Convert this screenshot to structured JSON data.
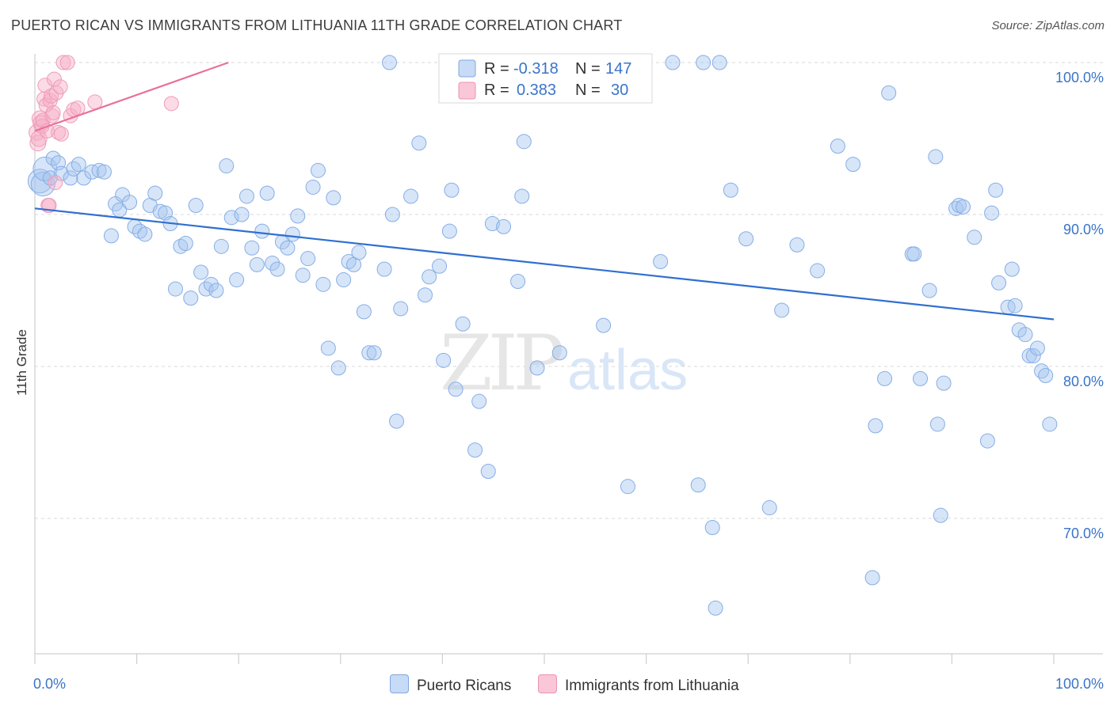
{
  "chart_data": {
    "type": "scatter",
    "title": "PUERTO RICAN VS IMMIGRANTS FROM LITHUANIA 11TH GRADE CORRELATION CHART",
    "source": "Source: ZipAtlas.com",
    "ylabel": "11th Grade",
    "xlim": [
      0,
      100
    ],
    "ylim": [
      60.5,
      102
    ],
    "x_tick_labels": [
      "0.0%",
      "100.0%"
    ],
    "y_ticks": [
      100,
      90,
      80,
      70
    ],
    "y_tick_labels": [
      "100.0%",
      "90.0%",
      "80.0%",
      "70.0%"
    ],
    "watermark": {
      "zip": "ZIP",
      "atlas": "atlas"
    },
    "legend": {
      "rows": [
        {
          "r_label": "R = ",
          "r_value": "-0.318",
          "n_label": "N = ",
          "n_value": "147"
        },
        {
          "r_label": "R = ",
          "r_value": "0.383",
          "n_label": "N = ",
          "n_value": "30"
        }
      ]
    },
    "series": [
      {
        "name": "Puerto Ricans",
        "color": "#92b8ea",
        "line_color": "#2f6fd1",
        "trend": {
          "x": [
            0,
            100
          ],
          "y": [
            90.4,
            83.1
          ]
        },
        "points": [
          [
            0.5,
            92.2
          ],
          [
            0.8,
            92.0
          ],
          [
            1.0,
            93.0
          ],
          [
            1.5,
            92.4
          ],
          [
            1.8,
            93.7
          ],
          [
            2.3,
            93.4
          ],
          [
            2.6,
            92.7
          ],
          [
            3.5,
            92.4
          ],
          [
            3.8,
            93.0
          ],
          [
            4.3,
            93.3
          ],
          [
            4.8,
            92.4
          ],
          [
            5.6,
            92.8
          ],
          [
            6.3,
            92.9
          ],
          [
            6.8,
            92.8
          ],
          [
            7.5,
            88.6
          ],
          [
            7.9,
            90.7
          ],
          [
            8.3,
            90.3
          ],
          [
            8.6,
            91.3
          ],
          [
            9.3,
            90.8
          ],
          [
            9.8,
            89.2
          ],
          [
            10.3,
            88.9
          ],
          [
            10.8,
            88.7
          ],
          [
            11.3,
            90.6
          ],
          [
            11.8,
            91.4
          ],
          [
            12.3,
            90.2
          ],
          [
            12.8,
            90.1
          ],
          [
            13.3,
            89.4
          ],
          [
            13.8,
            85.1
          ],
          [
            14.3,
            87.9
          ],
          [
            14.8,
            88.1
          ],
          [
            15.3,
            84.5
          ],
          [
            15.8,
            90.6
          ],
          [
            16.3,
            86.2
          ],
          [
            16.8,
            85.1
          ],
          [
            17.3,
            85.4
          ],
          [
            17.8,
            85.0
          ],
          [
            18.3,
            87.9
          ],
          [
            18.8,
            93.2
          ],
          [
            19.3,
            89.8
          ],
          [
            19.8,
            85.7
          ],
          [
            20.3,
            90.0
          ],
          [
            20.8,
            91.2
          ],
          [
            21.3,
            87.8
          ],
          [
            21.8,
            86.7
          ],
          [
            22.3,
            88.9
          ],
          [
            22.8,
            91.4
          ],
          [
            23.3,
            86.8
          ],
          [
            23.8,
            86.4
          ],
          [
            24.3,
            88.2
          ],
          [
            24.8,
            87.8
          ],
          [
            25.3,
            88.7
          ],
          [
            25.8,
            89.9
          ],
          [
            26.3,
            86.0
          ],
          [
            26.8,
            87.1
          ],
          [
            27.3,
            91.8
          ],
          [
            27.8,
            92.9
          ],
          [
            28.3,
            85.4
          ],
          [
            28.8,
            81.2
          ],
          [
            29.3,
            91.1
          ],
          [
            29.8,
            79.9
          ],
          [
            30.3,
            85.7
          ],
          [
            30.8,
            86.9
          ],
          [
            31.3,
            86.7
          ],
          [
            31.8,
            87.5
          ],
          [
            32.3,
            83.6
          ],
          [
            32.8,
            80.9
          ],
          [
            33.3,
            80.9
          ],
          [
            34.3,
            86.4
          ],
          [
            34.8,
            100.0
          ],
          [
            35.1,
            90.0
          ],
          [
            35.5,
            76.4
          ],
          [
            35.9,
            83.8
          ],
          [
            36.9,
            91.2
          ],
          [
            37.7,
            94.7
          ],
          [
            38.3,
            84.7
          ],
          [
            38.7,
            85.9
          ],
          [
            39.7,
            86.6
          ],
          [
            40.1,
            80.4
          ],
          [
            40.7,
            88.9
          ],
          [
            40.9,
            91.6
          ],
          [
            41.3,
            78.5
          ],
          [
            42.0,
            82.8
          ],
          [
            43.2,
            74.5
          ],
          [
            43.6,
            77.7
          ],
          [
            44.5,
            73.1
          ],
          [
            44.9,
            89.4
          ],
          [
            46.0,
            89.2
          ],
          [
            47.4,
            85.6
          ],
          [
            47.8,
            91.2
          ],
          [
            48.0,
            94.8
          ],
          [
            49.3,
            79.9
          ],
          [
            51.5,
            80.9
          ],
          [
            55.8,
            82.7
          ],
          [
            58.2,
            72.1
          ],
          [
            61.4,
            86.9
          ],
          [
            62.6,
            100.0
          ],
          [
            65.1,
            72.2
          ],
          [
            65.6,
            100.0
          ],
          [
            66.5,
            69.4
          ],
          [
            66.8,
            64.1
          ],
          [
            67.2,
            100.0
          ],
          [
            68.3,
            91.6
          ],
          [
            69.8,
            88.4
          ],
          [
            72.1,
            70.7
          ],
          [
            73.3,
            83.7
          ],
          [
            74.8,
            88.0
          ],
          [
            76.8,
            86.3
          ],
          [
            78.8,
            94.5
          ],
          [
            80.3,
            93.3
          ],
          [
            82.2,
            66.1
          ],
          [
            82.5,
            76.1
          ],
          [
            83.4,
            79.2
          ],
          [
            83.8,
            98.0
          ],
          [
            86.1,
            87.4
          ],
          [
            86.3,
            87.4
          ],
          [
            86.9,
            79.2
          ],
          [
            87.8,
            85.0
          ],
          [
            88.4,
            93.8
          ],
          [
            88.6,
            76.2
          ],
          [
            88.9,
            70.2
          ],
          [
            89.2,
            78.9
          ],
          [
            90.4,
            90.4
          ],
          [
            90.7,
            90.6
          ],
          [
            91.1,
            90.5
          ],
          [
            92.2,
            88.5
          ],
          [
            93.5,
            75.1
          ],
          [
            93.9,
            90.1
          ],
          [
            94.3,
            91.6
          ],
          [
            94.6,
            85.5
          ],
          [
            95.5,
            83.9
          ],
          [
            95.9,
            86.4
          ],
          [
            96.2,
            84.0
          ],
          [
            96.6,
            82.4
          ],
          [
            97.2,
            82.1
          ],
          [
            97.6,
            80.7
          ],
          [
            98.0,
            80.7
          ],
          [
            98.4,
            81.2
          ],
          [
            98.8,
            79.7
          ],
          [
            99.2,
            79.4
          ],
          [
            99.6,
            76.2
          ]
        ]
      },
      {
        "name": "Immigrants from Lithuania",
        "color": "#f4a6bf",
        "line_color": "#e8719a",
        "trend": {
          "x": [
            0,
            19
          ],
          "y": [
            95.5,
            100.0
          ]
        },
        "points": [
          [
            0.2,
            95.4
          ],
          [
            0.3,
            94.7
          ],
          [
            0.4,
            95.0
          ],
          [
            0.5,
            96.3
          ],
          [
            0.6,
            96.0
          ],
          [
            0.7,
            95.8
          ],
          [
            0.8,
            96.2
          ],
          [
            0.9,
            97.6
          ],
          [
            1.0,
            98.5
          ],
          [
            1.1,
            97.2
          ],
          [
            1.2,
            95.5
          ],
          [
            1.3,
            90.6
          ],
          [
            1.4,
            90.6
          ],
          [
            1.5,
            97.5
          ],
          [
            1.6,
            97.8
          ],
          [
            1.7,
            96.5
          ],
          [
            1.8,
            96.7
          ],
          [
            1.9,
            98.9
          ],
          [
            2.0,
            92.1
          ],
          [
            2.1,
            98.0
          ],
          [
            2.3,
            95.4
          ],
          [
            2.5,
            98.4
          ],
          [
            2.6,
            95.3
          ],
          [
            2.8,
            100.0
          ],
          [
            3.2,
            100.0
          ],
          [
            3.5,
            96.5
          ],
          [
            3.8,
            96.9
          ],
          [
            4.2,
            97.0
          ],
          [
            5.9,
            97.4
          ],
          [
            13.4,
            97.3
          ]
        ]
      }
    ]
  }
}
